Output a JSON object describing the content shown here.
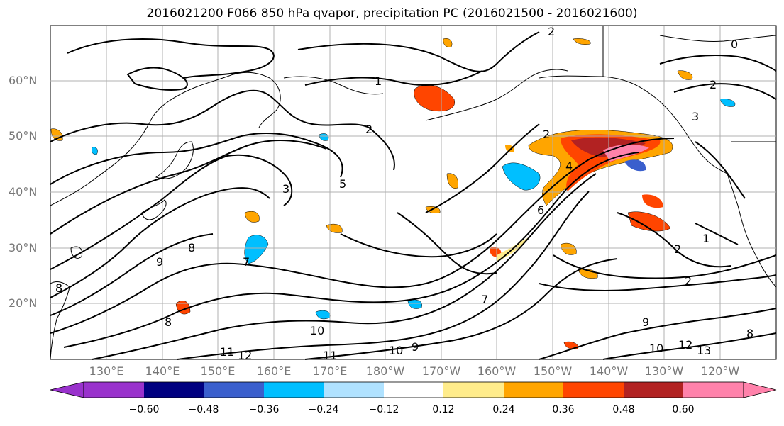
{
  "title": "2016021200 F066 850 hPa qvapor, precipitation PC (2016021500 - 2016021600)",
  "lat_labels": [
    "60°N",
    "50°N",
    "40°N",
    "30°N",
    "20°N"
  ],
  "lon_labels": [
    "130°E",
    "140°E",
    "150°E",
    "160°E",
    "170°E",
    "180°W",
    "170°W",
    "160°W",
    "150°W",
    "140°W",
    "130°W",
    "120°W"
  ],
  "contour_labels": [
    "2",
    "0",
    "1",
    "2",
    "2",
    "3",
    "4",
    "5",
    "3",
    "2",
    "6",
    "7",
    "8",
    "9",
    "8",
    "10",
    "11",
    "12",
    "11",
    "10",
    "9",
    "7",
    "2",
    "1",
    "2",
    "13",
    "12",
    "10",
    "8",
    "9",
    "8"
  ],
  "colorbar": {
    "ticks": [
      "−0.60",
      "−0.48",
      "−0.36",
      "−0.24",
      "−0.12",
      "0.12",
      "0.24",
      "0.36",
      "0.48",
      "0.60"
    ],
    "colors": [
      "#9932cc",
      "#000080",
      "#3a5fcd",
      "#00bfff",
      "#b0e2ff",
      "#ffffff",
      "#ffec8b",
      "#ffa500",
      "#ff4500",
      "#b22222",
      "#ff82ab"
    ]
  },
  "colors": {
    "coast": "#000000",
    "grid": "#b0b0b0",
    "contour": "#000000",
    "axis_label": "#777777"
  }
}
